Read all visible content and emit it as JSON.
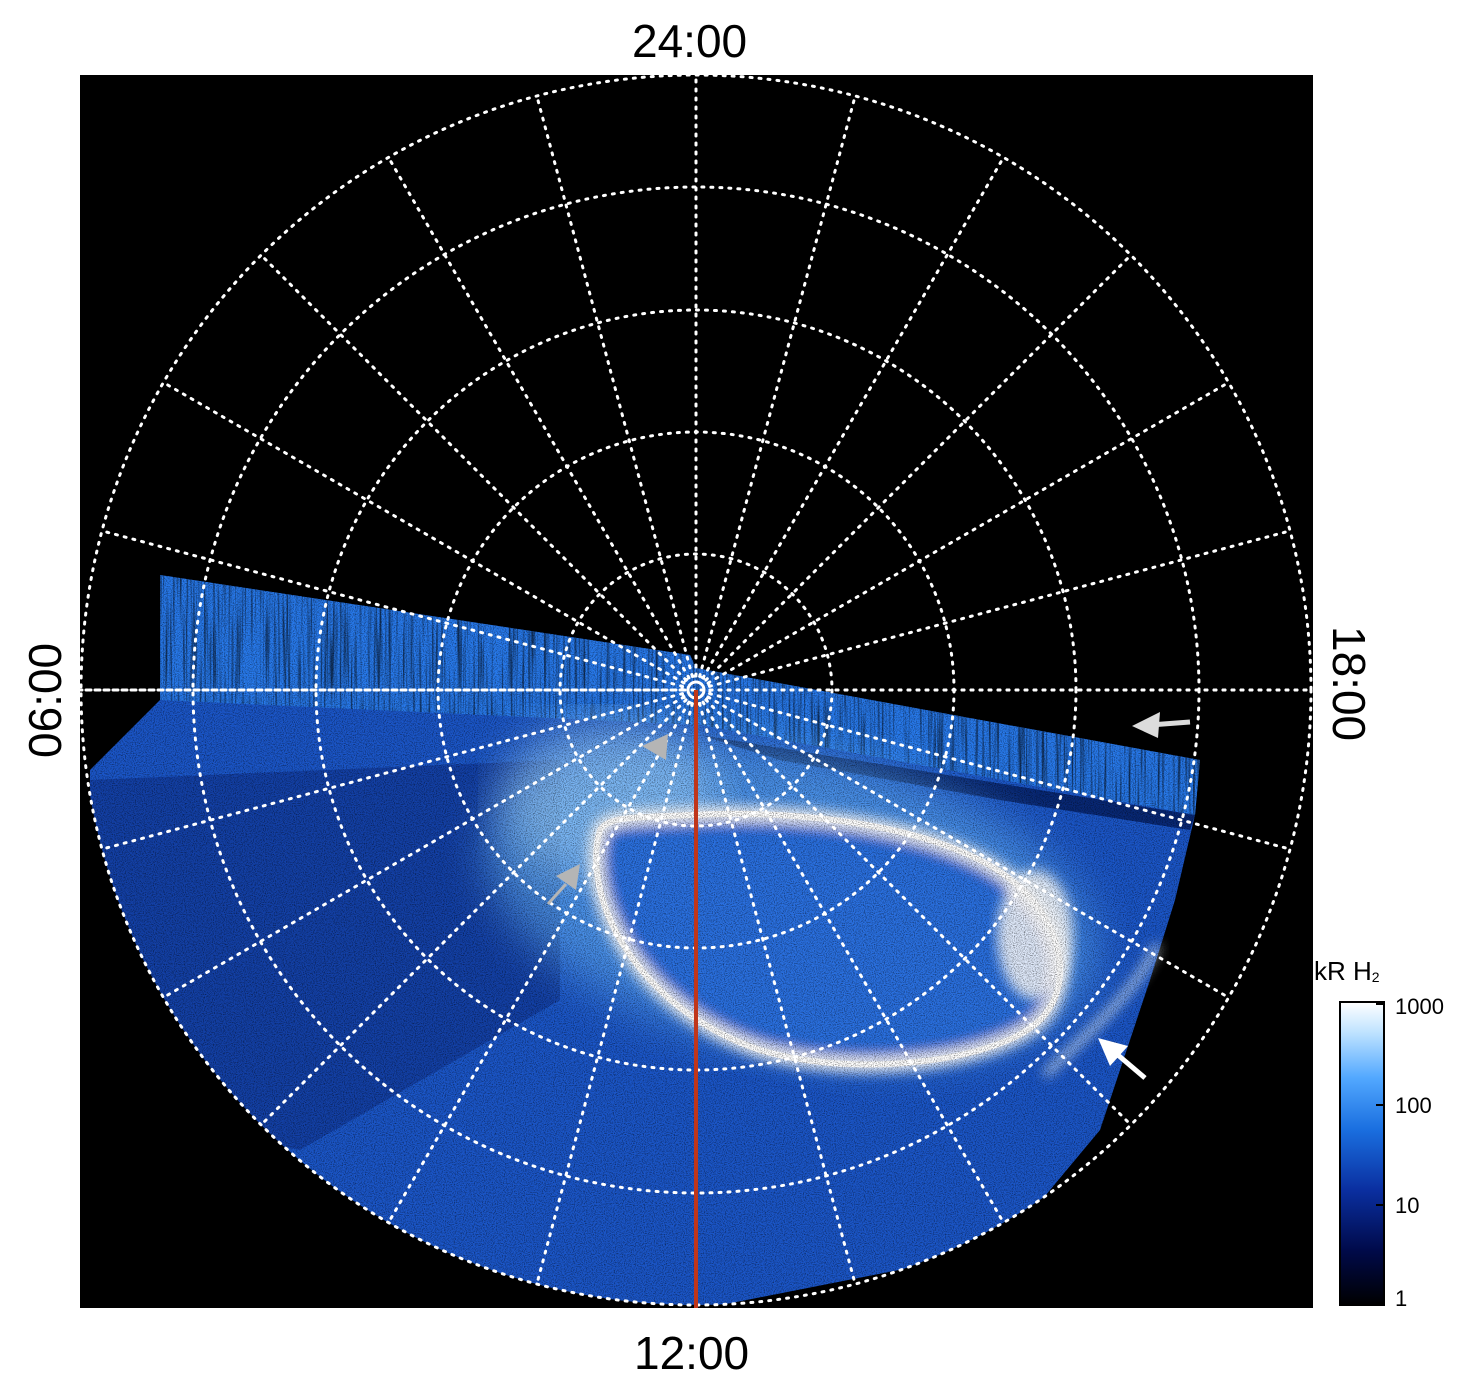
{
  "local_time_labels": {
    "top": "24:00",
    "bottom": "12:00",
    "left": "06:00",
    "right": "18:00"
  },
  "colorbar": {
    "title_main": "kR H",
    "title_sub": "2",
    "ticks": [
      "1000",
      "100",
      "10",
      "1"
    ],
    "scale": "log",
    "range": [
      1,
      1000
    ],
    "colors": [
      "#000000",
      "#000a4a",
      "#0a2fa0",
      "#1a6fe0",
      "#52a8ff",
      "#bfe3ff",
      "#ffffff"
    ]
  },
  "colors": {
    "background": "#000000",
    "grid": "#ffffff",
    "meridian": "#c0361a",
    "arrow_white": "#ffffff",
    "arrow_grey": "#bfbfbf"
  }
}
